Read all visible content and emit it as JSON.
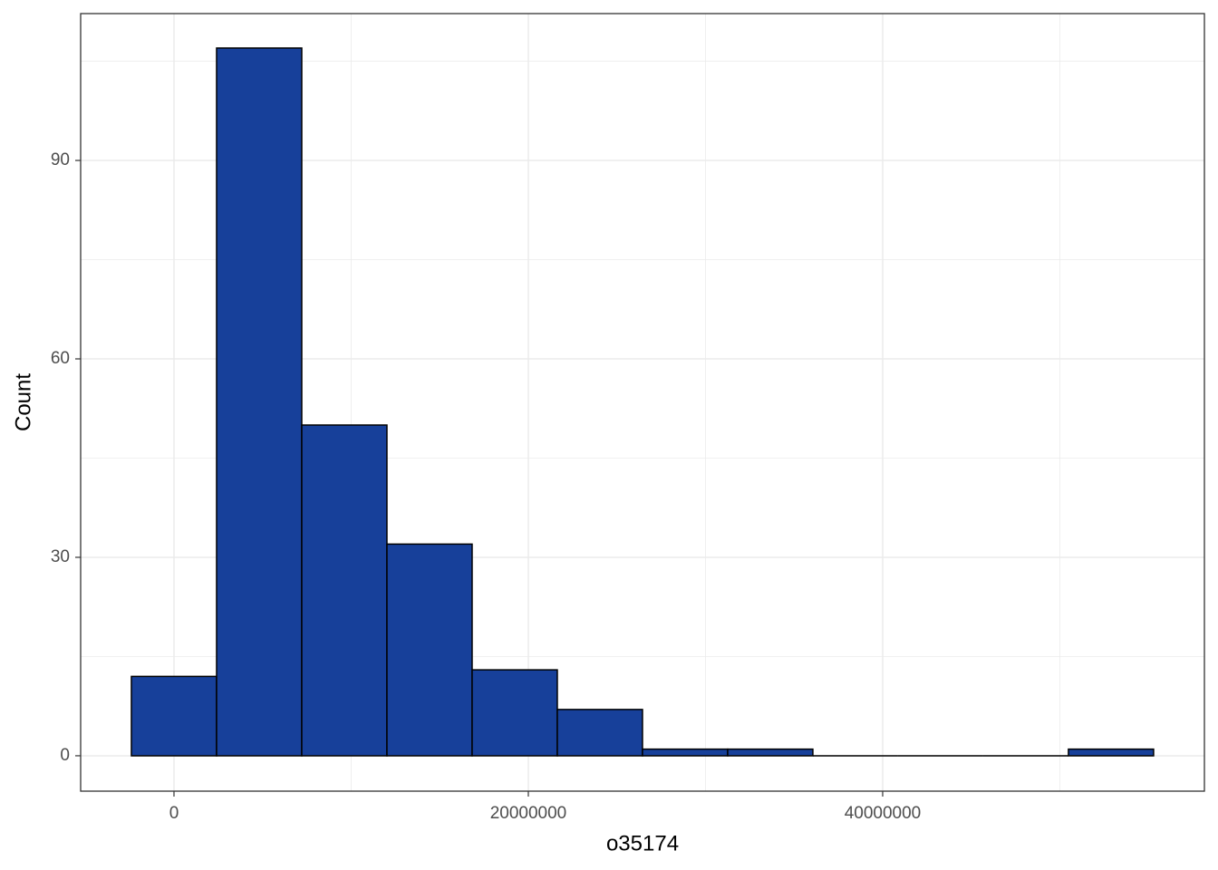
{
  "chart_data": {
    "type": "histogram",
    "x_label": "o35174",
    "y_label": "Count",
    "bins": [
      -2404000,
      2404000,
      7212000,
      12020000,
      16828000,
      21636000,
      26444000,
      31252000,
      36060000,
      40868000,
      45676000,
      50484000,
      55292000
    ],
    "values": [
      12,
      107,
      50,
      32,
      13,
      7,
      1,
      1,
      0,
      0,
      0,
      1
    ],
    "color": "#17409a",
    "edge_color": "#000000",
    "xlim": [
      -5268000,
      58160000
    ],
    "ylim": [
      -5.35,
      112.2
    ],
    "xticks": [
      0,
      20000000,
      40000000
    ],
    "yticks": [
      0,
      30,
      60,
      90
    ],
    "xminor": [
      10000000,
      30000000,
      50000000
    ],
    "yminor": [
      15,
      45,
      75,
      105
    ],
    "grid": true
  }
}
